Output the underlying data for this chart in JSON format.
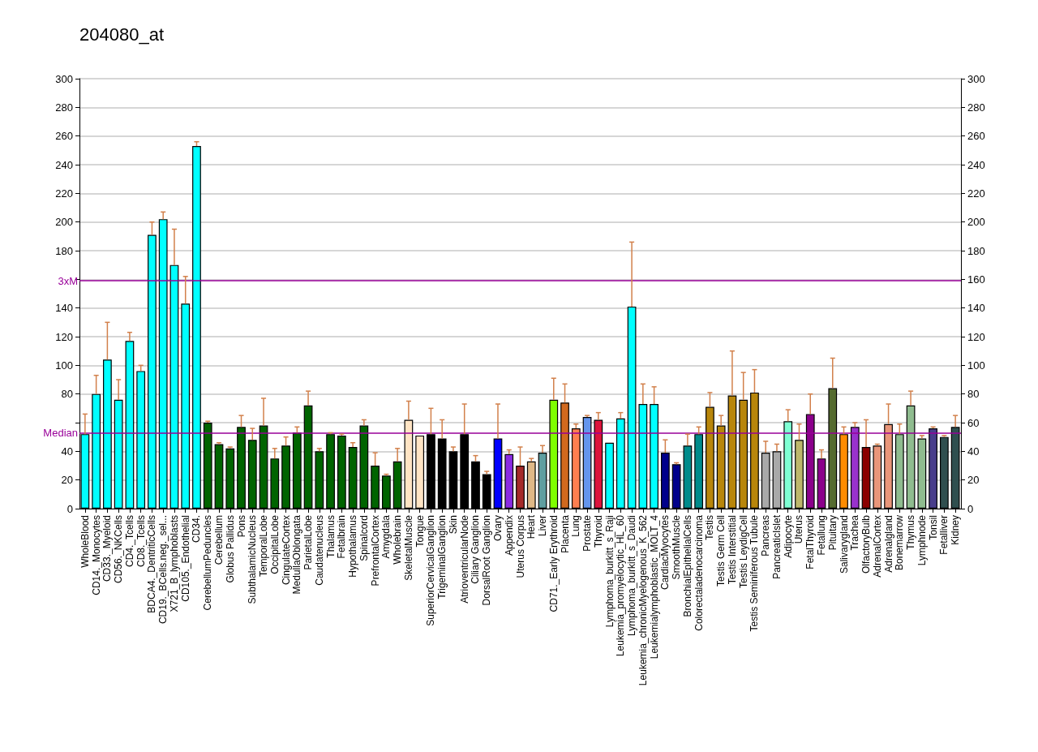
{
  "chart_data": {
    "type": "bar",
    "title": "204080_at",
    "categories": [
      "WholeBlood",
      "CD14._Monocytes",
      "CD33._Myeloid",
      "CD56._NKCells",
      "CD4._Tcells",
      "CD8._Tcells",
      "BDCA4._DentriticCells",
      "CD19._BCells.neg._sel...",
      "X721_B_lymphoblasts",
      "CD105._Endothelial",
      "CD34.",
      "CerebellumPeduncles",
      "Cerebellum",
      "Globus Pallidus",
      "Pons",
      "SubthalamicNucleus",
      "TemporalLobe",
      "OccipitalLobe",
      "CingulateCortex",
      "MedullaOblongata",
      "ParietalLobe",
      "Caudatenucleus",
      "Thalamus",
      "Fetalbrain",
      "Hypothalamus",
      "Spinalcord",
      "PrefrontalCortex",
      "Amygdala",
      "Wholebrain",
      "SkeletalMuscle",
      "Tongue",
      "SuperiorCervicalGanglion",
      "TrigeminalGanglion",
      "Skin",
      "AtrioventricularNode",
      "Ciliary Ganglion",
      "DorsalRoot Ganglion",
      "Ovary",
      "Appendix",
      "Uterus Corpus",
      "Heart",
      "Liver",
      "CD71._Early Erythroid",
      "Placenta",
      "Lung",
      "Prostate",
      "Thyroid",
      "Lymphoma_burkitt_s_Raji",
      "Leukemia_promyelocytic_HL_60",
      "Lymphoma_burkitt_s_Daudi",
      "Leukemia_chronicMyelogenous_K_562",
      "Leukemialymphoblastic_MOLT_4",
      "CardiacMyocytes",
      "SmoothMuscle",
      "BronchialEpithelialCells",
      "Colorectaladenocarcinoma",
      "Testis",
      "Testis Germ Cell",
      "Testis Interstitial",
      "Testis LeydigCell",
      "Testis Seminiferous Tubule",
      "Pancreas",
      "PancreaticIslet",
      "Adipocyte",
      "Uterus",
      "FetalThyroid",
      "Fetallung",
      "Pituitary",
      "Salivarygland",
      "Trachea",
      "OlfactoryBulb",
      "AdrenalCortex",
      "Adrenalgland",
      "Bonemarrow",
      "Thymus",
      "Lymphnode",
      "Tonsil",
      "Fetalliver",
      "Kidney"
    ],
    "values": [
      52,
      80,
      104,
      76,
      117,
      96,
      191,
      202,
      170,
      143,
      253,
      60,
      45,
      42,
      57,
      48,
      58,
      35,
      44,
      53,
      72,
      40,
      52,
      51,
      43,
      58,
      30,
      23,
      33,
      62,
      51,
      52,
      49,
      40,
      52,
      33,
      24,
      49,
      38,
      30,
      33,
      39,
      76,
      74,
      56,
      64,
      62,
      46,
      63,
      141,
      73,
      73,
      39,
      31,
      44,
      52,
      71,
      58,
      79,
      76,
      81,
      39,
      40,
      61,
      48,
      66,
      35,
      84,
      52,
      57,
      43,
      44,
      59,
      52,
      72,
      49,
      56,
      50,
      57
    ],
    "errors": [
      [
        52,
        66
      ],
      [
        80,
        93
      ],
      [
        104,
        130
      ],
      [
        76,
        90
      ],
      [
        117,
        123
      ],
      [
        96,
        100
      ],
      [
        191,
        200
      ],
      [
        202,
        207
      ],
      [
        170,
        195
      ],
      [
        143,
        162
      ],
      [
        253,
        256
      ],
      [
        60,
        61
      ],
      [
        45,
        46
      ],
      [
        42,
        43
      ],
      [
        57,
        65
      ],
      [
        48,
        56
      ],
      [
        58,
        77
      ],
      [
        35,
        42
      ],
      [
        44,
        50
      ],
      [
        53,
        57
      ],
      [
        72,
        82
      ],
      [
        40,
        42
      ],
      [
        52,
        53
      ],
      [
        51,
        52
      ],
      [
        43,
        46
      ],
      [
        58,
        62
      ],
      [
        30,
        39
      ],
      [
        23,
        24
      ],
      [
        33,
        42
      ],
      [
        62,
        75
      ],
      null,
      [
        52,
        70
      ],
      [
        49,
        62
      ],
      [
        40,
        43
      ],
      [
        52,
        73
      ],
      [
        33,
        37
      ],
      [
        24,
        26
      ],
      [
        49,
        73
      ],
      [
        38,
        41
      ],
      [
        30,
        43
      ],
      [
        33,
        35
      ],
      [
        39,
        44
      ],
      [
        76,
        91
      ],
      [
        74,
        87
      ],
      [
        56,
        59
      ],
      [
        64,
        65
      ],
      [
        62,
        67
      ],
      null,
      [
        63,
        67
      ],
      [
        141,
        186
      ],
      [
        73,
        87
      ],
      [
        73,
        85
      ],
      [
        39,
        48
      ],
      [
        31,
        32
      ],
      [
        44,
        52
      ],
      [
        52,
        57
      ],
      [
        71,
        81
      ],
      [
        58,
        65
      ],
      [
        79,
        110
      ],
      [
        76,
        95
      ],
      [
        81,
        97
      ],
      [
        39,
        47
      ],
      [
        40,
        45
      ],
      [
        61,
        69
      ],
      [
        48,
        59
      ],
      [
        66,
        80
      ],
      [
        35,
        41
      ],
      [
        84,
        105
      ],
      [
        52,
        57
      ],
      [
        57,
        60
      ],
      [
        43,
        62
      ],
      [
        44,
        45
      ],
      [
        59,
        73
      ],
      [
        52,
        59
      ],
      [
        72,
        82
      ],
      [
        49,
        51
      ],
      [
        56,
        57
      ],
      [
        50,
        51
      ],
      [
        57,
        65
      ]
    ],
    "colors": [
      "#00ffff",
      "#00ffff",
      "#00ffff",
      "#00ffff",
      "#00ffff",
      "#00ffff",
      "#00ffff",
      "#00ffff",
      "#00ffff",
      "#00ffff",
      "#00ffff",
      "#006400",
      "#006400",
      "#006400",
      "#006400",
      "#006400",
      "#006400",
      "#006400",
      "#006400",
      "#006400",
      "#006400",
      "#006400",
      "#006400",
      "#006400",
      "#006400",
      "#006400",
      "#006400",
      "#006400",
      "#006400",
      "#ffe4c4",
      "#ffe4c4",
      "#000000",
      "#000000",
      "#000000",
      "#000000",
      "#000000",
      "#000000",
      "#0000ff",
      "#8a2be2",
      "#a52a2a",
      "#deb887",
      "#5f9ea0",
      "#7fff00",
      "#d2691e",
      "#ff7f50",
      "#6495ed",
      "#dc143c",
      "#00ffff",
      "#00ffff",
      "#00ffff",
      "#00ffff",
      "#00ffff",
      "#00008b",
      "#00008b",
      "#008b8b",
      "#008b8b",
      "#b8860b",
      "#b8860b",
      "#b8860b",
      "#b8860b",
      "#b8860b",
      "#a9a9a9",
      "#a9a9a9",
      "#7fffd4",
      "#bdb76b",
      "#8b008b",
      "#8b008b",
      "#556b2f",
      "#ff8c00",
      "#9932cc",
      "#8b0000",
      "#e9967a",
      "#e9967a",
      "#8fbc8f",
      "#8fbc8f",
      "#8fbc8f",
      "#483d8b",
      "#2f4f4f",
      "#2f4f4f"
    ],
    "ylim": [
      0,
      300
    ],
    "yticks": [
      0,
      20,
      40,
      {
        "value": 60,
        "label": null
      },
      80,
      100,
      120,
      140,
      {
        "value": 160,
        "label": null
      },
      180,
      200,
      220,
      240,
      260,
      280,
      300
    ],
    "y2lim": [
      0,
      300
    ],
    "y2ticks": [
      0,
      20,
      40,
      60,
      80,
      100,
      120,
      140,
      160,
      180,
      200,
      220,
      240,
      260,
      280,
      300
    ],
    "ref_lines": [
      {
        "axis": "y",
        "value": 53,
        "label": "Median",
        "color": "#990099"
      },
      {
        "axis": "y",
        "value": 159,
        "label": "3xM",
        "color": "#990099"
      }
    ],
    "grid": "y"
  }
}
